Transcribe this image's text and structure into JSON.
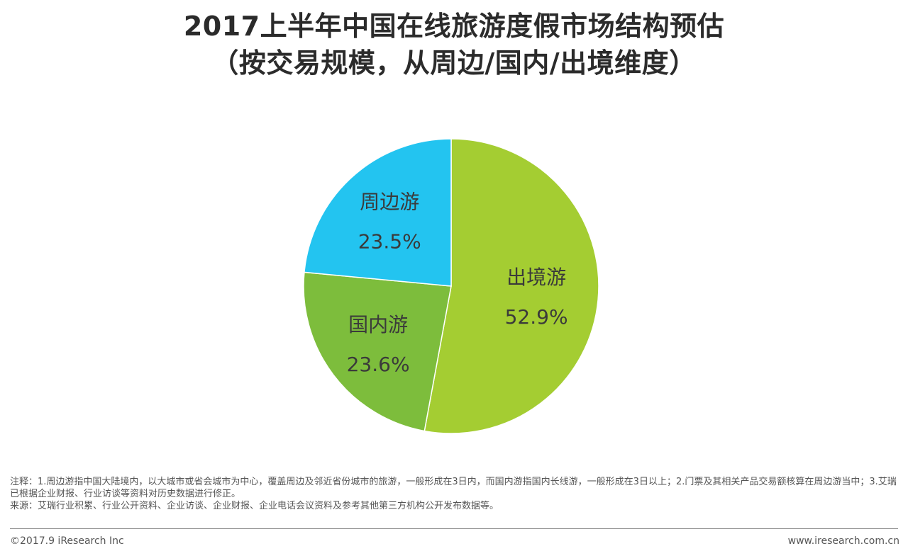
{
  "title_line1": "2017上半年中国在线旅游度假市场结构预估",
  "title_line2": "（按交易规模，从周边/国内/出境维度）",
  "chart_data": {
    "type": "pie",
    "title": "2017上半年中国在线旅游度假市场结构预估（按交易规模，从周边/国内/出境维度）",
    "slices": [
      {
        "name": "出境游",
        "value": 52.9,
        "label": "52.9%",
        "color": "#a4cd32"
      },
      {
        "name": "国内游",
        "value": 23.6,
        "label": "23.6%",
        "color": "#7dbd3c"
      },
      {
        "name": "周边游",
        "value": 23.5,
        "label": "23.5%",
        "color": "#23c4f0"
      }
    ],
    "start": "12 o'clock",
    "direction": "clockwise",
    "legend": "none",
    "labels": "inside"
  },
  "notes": {
    "note": "注释：1.周边游指中国大陆境内，以大城市或省会城市为中心，覆盖周边及邻近省份城市的旅游，一般形成在3日内，而国内游指国内长线游，一般形成在3日以上；2.门票及其相关产品交易额核算在周边游当中；3.艾瑞已根据企业财报、行业访谈等资料对历史数据进行修正。",
    "source": "来源：艾瑞行业积累、行业公开资料、企业访谈、企业财报、企业电话会议资料及参考其他第三方机构公开发布数据等。"
  },
  "footer": {
    "copyright": "©2017.9 iResearch Inc",
    "website": "www.iresearch.com.cn"
  }
}
